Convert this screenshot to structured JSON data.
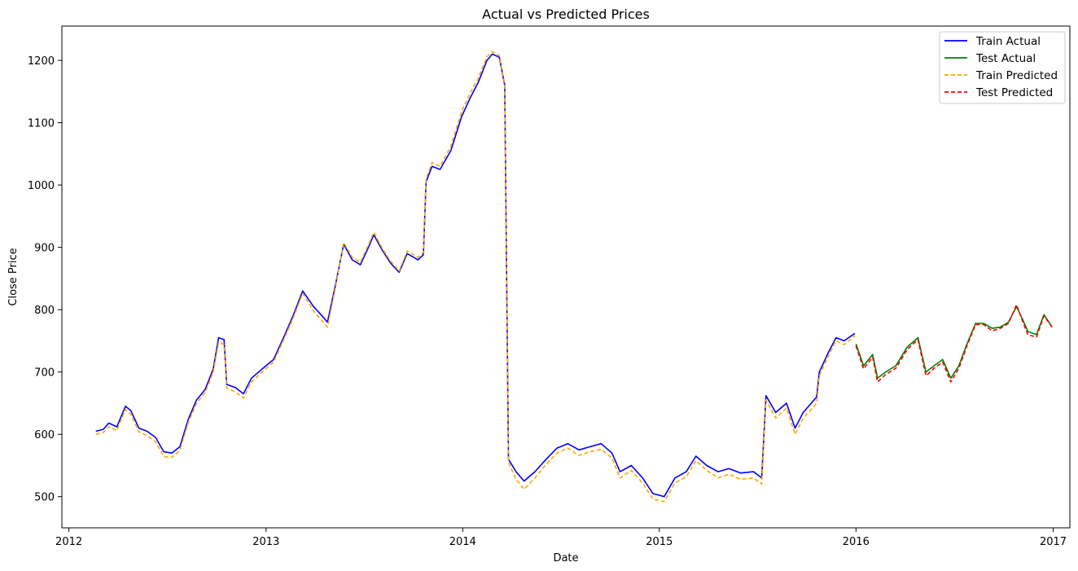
{
  "chart_data": {
    "type": "line",
    "title": "Actual vs Predicted Prices",
    "xlabel": "Date",
    "ylabel": "Close Price",
    "xlim": [
      "2011-12-19",
      "2017-02-01"
    ],
    "ylim": [
      450,
      1255
    ],
    "x_ticks": [
      "2012",
      "2013",
      "2014",
      "2015",
      "2016",
      "2017"
    ],
    "y_ticks": [
      500,
      600,
      700,
      800,
      900,
      1000,
      1100,
      1200
    ],
    "grid": false,
    "legend_position": "top-right",
    "series": [
      {
        "name": "Train Actual",
        "color": "#0000ff",
        "style": "solid",
        "points": [
          [
            "2012-02-20",
            605
          ],
          [
            "2012-03-05",
            608
          ],
          [
            "2012-03-15",
            618
          ],
          [
            "2012-03-30",
            612
          ],
          [
            "2012-04-15",
            645
          ],
          [
            "2012-04-25",
            638
          ],
          [
            "2012-05-10",
            610
          ],
          [
            "2012-05-25",
            605
          ],
          [
            "2012-06-10",
            595
          ],
          [
            "2012-06-25",
            572
          ],
          [
            "2012-07-10",
            570
          ],
          [
            "2012-07-25",
            580
          ],
          [
            "2012-08-10",
            625
          ],
          [
            "2012-08-25",
            655
          ],
          [
            "2012-09-10",
            672
          ],
          [
            "2012-09-25",
            705
          ],
          [
            "2012-10-05",
            755
          ],
          [
            "2012-10-15",
            752
          ],
          [
            "2012-10-20",
            680
          ],
          [
            "2012-11-05",
            675
          ],
          [
            "2012-11-20",
            665
          ],
          [
            "2012-12-05",
            690
          ],
          [
            "2012-12-25",
            705
          ],
          [
            "2013-01-15",
            720
          ],
          [
            "2013-02-05",
            760
          ],
          [
            "2013-02-20",
            790
          ],
          [
            "2013-03-10",
            830
          ],
          [
            "2013-03-30",
            805
          ],
          [
            "2013-04-15",
            790
          ],
          [
            "2013-04-25",
            780
          ],
          [
            "2013-05-10",
            840
          ],
          [
            "2013-05-25",
            905
          ],
          [
            "2013-06-10",
            880
          ],
          [
            "2013-06-25",
            872
          ],
          [
            "2013-07-10",
            900
          ],
          [
            "2013-07-20",
            920
          ],
          [
            "2013-08-05",
            895
          ],
          [
            "2013-08-20",
            875
          ],
          [
            "2013-09-05",
            860
          ],
          [
            "2013-09-20",
            890
          ],
          [
            "2013-10-10",
            880
          ],
          [
            "2013-10-20",
            888
          ],
          [
            "2013-10-25",
            1005
          ],
          [
            "2013-11-05",
            1030
          ],
          [
            "2013-11-20",
            1025
          ],
          [
            "2013-12-10",
            1055
          ],
          [
            "2013-12-30",
            1110
          ],
          [
            "2014-01-15",
            1140
          ],
          [
            "2014-01-30",
            1165
          ],
          [
            "2014-02-15",
            1200
          ],
          [
            "2014-02-25",
            1210
          ],
          [
            "2014-03-10",
            1205
          ],
          [
            "2014-03-20",
            1160
          ],
          [
            "2014-03-27",
            560
          ],
          [
            "2014-04-10",
            540
          ],
          [
            "2014-04-25",
            525
          ],
          [
            "2014-05-15",
            540
          ],
          [
            "2014-06-05",
            560
          ],
          [
            "2014-06-25",
            578
          ],
          [
            "2014-07-15",
            585
          ],
          [
            "2014-08-05",
            575
          ],
          [
            "2014-08-25",
            580
          ],
          [
            "2014-09-15",
            585
          ],
          [
            "2014-10-05",
            570
          ],
          [
            "2014-10-20",
            540
          ],
          [
            "2014-11-10",
            550
          ],
          [
            "2014-12-01",
            530
          ],
          [
            "2014-12-20",
            505
          ],
          [
            "2015-01-10",
            500
          ],
          [
            "2015-01-30",
            530
          ],
          [
            "2015-02-20",
            540
          ],
          [
            "2015-03-10",
            565
          ],
          [
            "2015-03-30",
            550
          ],
          [
            "2015-04-20",
            540
          ],
          [
            "2015-05-10",
            545
          ],
          [
            "2015-06-01",
            538
          ],
          [
            "2015-06-25",
            540
          ],
          [
            "2015-07-10",
            530
          ],
          [
            "2015-07-18",
            662
          ],
          [
            "2015-08-05",
            635
          ],
          [
            "2015-08-25",
            650
          ],
          [
            "2015-09-10",
            610
          ],
          [
            "2015-09-25",
            635
          ],
          [
            "2015-10-10",
            650
          ],
          [
            "2015-10-20",
            660
          ],
          [
            "2015-10-25",
            700
          ],
          [
            "2015-11-10",
            730
          ],
          [
            "2015-11-25",
            755
          ],
          [
            "2015-12-10",
            750
          ],
          [
            "2015-12-30",
            762
          ]
        ]
      },
      {
        "name": "Test Actual",
        "color": "#008000",
        "style": "solid",
        "points": [
          [
            "2016-01-01",
            745
          ],
          [
            "2016-01-15",
            710
          ],
          [
            "2016-02-01",
            728
          ],
          [
            "2016-02-10",
            690
          ],
          [
            "2016-02-25",
            700
          ],
          [
            "2016-03-15",
            710
          ],
          [
            "2016-04-05",
            740
          ],
          [
            "2016-04-25",
            755
          ],
          [
            "2016-05-10",
            700
          ],
          [
            "2016-05-25",
            710
          ],
          [
            "2016-06-10",
            720
          ],
          [
            "2016-06-25",
            690
          ],
          [
            "2016-07-10",
            710
          ],
          [
            "2016-07-25",
            745
          ],
          [
            "2016-08-10",
            778
          ],
          [
            "2016-08-25",
            778
          ],
          [
            "2016-09-10",
            770
          ],
          [
            "2016-09-25",
            772
          ],
          [
            "2016-10-10",
            780
          ],
          [
            "2016-10-25",
            805
          ],
          [
            "2016-11-05",
            785
          ],
          [
            "2016-11-15",
            765
          ],
          [
            "2016-12-01",
            760
          ],
          [
            "2016-12-15",
            792
          ],
          [
            "2016-12-30",
            772
          ]
        ]
      },
      {
        "name": "Train Predicted",
        "color": "#ffa500",
        "style": "dashed",
        "points": [
          [
            "2012-02-20",
            600
          ],
          [
            "2012-03-05",
            603
          ],
          [
            "2012-03-15",
            612
          ],
          [
            "2012-03-30",
            606
          ],
          [
            "2012-04-15",
            640
          ],
          [
            "2012-04-25",
            632
          ],
          [
            "2012-05-10",
            604
          ],
          [
            "2012-05-25",
            598
          ],
          [
            "2012-06-10",
            588
          ],
          [
            "2012-06-25",
            564
          ],
          [
            "2012-07-10",
            563
          ],
          [
            "2012-07-25",
            574
          ],
          [
            "2012-08-10",
            620
          ],
          [
            "2012-08-25",
            650
          ],
          [
            "2012-09-10",
            667
          ],
          [
            "2012-09-25",
            700
          ],
          [
            "2012-10-05",
            748
          ],
          [
            "2012-10-15",
            744
          ],
          [
            "2012-10-20",
            674
          ],
          [
            "2012-11-05",
            668
          ],
          [
            "2012-11-20",
            658
          ],
          [
            "2012-12-05",
            684
          ],
          [
            "2012-12-25",
            700
          ],
          [
            "2013-01-15",
            716
          ],
          [
            "2013-02-05",
            756
          ],
          [
            "2013-02-20",
            786
          ],
          [
            "2013-03-10",
            826
          ],
          [
            "2013-03-30",
            798
          ],
          [
            "2013-04-15",
            782
          ],
          [
            "2013-04-25",
            772
          ],
          [
            "2013-05-10",
            836
          ],
          [
            "2013-05-25",
            908
          ],
          [
            "2013-06-10",
            884
          ],
          [
            "2013-06-25",
            876
          ],
          [
            "2013-07-10",
            904
          ],
          [
            "2013-07-20",
            924
          ],
          [
            "2013-08-05",
            898
          ],
          [
            "2013-08-20",
            878
          ],
          [
            "2013-09-05",
            862
          ],
          [
            "2013-09-20",
            894
          ],
          [
            "2013-10-10",
            884
          ],
          [
            "2013-10-20",
            892
          ],
          [
            "2013-10-25",
            1010
          ],
          [
            "2013-11-05",
            1036
          ],
          [
            "2013-11-20",
            1030
          ],
          [
            "2013-12-10",
            1062
          ],
          [
            "2013-12-30",
            1118
          ],
          [
            "2014-01-15",
            1148
          ],
          [
            "2014-01-30",
            1172
          ],
          [
            "2014-02-15",
            1206
          ],
          [
            "2014-02-25",
            1214
          ],
          [
            "2014-03-10",
            1208
          ],
          [
            "2014-03-20",
            1162
          ],
          [
            "2014-03-27",
            555
          ],
          [
            "2014-04-10",
            528
          ],
          [
            "2014-04-25",
            512
          ],
          [
            "2014-05-15",
            530
          ],
          [
            "2014-06-05",
            552
          ],
          [
            "2014-06-25",
            570
          ],
          [
            "2014-07-15",
            578
          ],
          [
            "2014-08-05",
            566
          ],
          [
            "2014-08-25",
            572
          ],
          [
            "2014-09-15",
            576
          ],
          [
            "2014-10-05",
            562
          ],
          [
            "2014-10-20",
            530
          ],
          [
            "2014-11-10",
            542
          ],
          [
            "2014-12-01",
            522
          ],
          [
            "2014-12-20",
            496
          ],
          [
            "2015-01-10",
            492
          ],
          [
            "2015-01-30",
            522
          ],
          [
            "2015-02-20",
            532
          ],
          [
            "2015-03-10",
            558
          ],
          [
            "2015-03-30",
            542
          ],
          [
            "2015-04-20",
            530
          ],
          [
            "2015-05-10",
            536
          ],
          [
            "2015-06-01",
            528
          ],
          [
            "2015-06-25",
            530
          ],
          [
            "2015-07-10",
            520
          ],
          [
            "2015-07-18",
            655
          ],
          [
            "2015-08-05",
            626
          ],
          [
            "2015-08-25",
            642
          ],
          [
            "2015-09-10",
            600
          ],
          [
            "2015-09-25",
            626
          ],
          [
            "2015-10-10",
            640
          ],
          [
            "2015-10-20",
            650
          ],
          [
            "2015-10-25",
            694
          ],
          [
            "2015-11-10",
            724
          ],
          [
            "2015-11-25",
            750
          ],
          [
            "2015-12-10",
            744
          ],
          [
            "2015-12-30",
            758
          ]
        ]
      },
      {
        "name": "Test Predicted",
        "color": "#ff0000",
        "style": "dashed",
        "points": [
          [
            "2016-01-01",
            742
          ],
          [
            "2016-01-15",
            705
          ],
          [
            "2016-02-01",
            724
          ],
          [
            "2016-02-10",
            684
          ],
          [
            "2016-02-25",
            696
          ],
          [
            "2016-03-15",
            706
          ],
          [
            "2016-04-05",
            736
          ],
          [
            "2016-04-25",
            752
          ],
          [
            "2016-05-10",
            694
          ],
          [
            "2016-05-25",
            706
          ],
          [
            "2016-06-10",
            716
          ],
          [
            "2016-06-25",
            684
          ],
          [
            "2016-07-10",
            706
          ],
          [
            "2016-07-25",
            742
          ],
          [
            "2016-08-10",
            776
          ],
          [
            "2016-08-25",
            776
          ],
          [
            "2016-09-10",
            766
          ],
          [
            "2016-09-25",
            770
          ],
          [
            "2016-10-10",
            778
          ],
          [
            "2016-10-25",
            808
          ],
          [
            "2016-11-05",
            782
          ],
          [
            "2016-11-15",
            760
          ],
          [
            "2016-12-01",
            756
          ],
          [
            "2016-12-15",
            790
          ],
          [
            "2016-12-30",
            772
          ]
        ]
      }
    ]
  }
}
